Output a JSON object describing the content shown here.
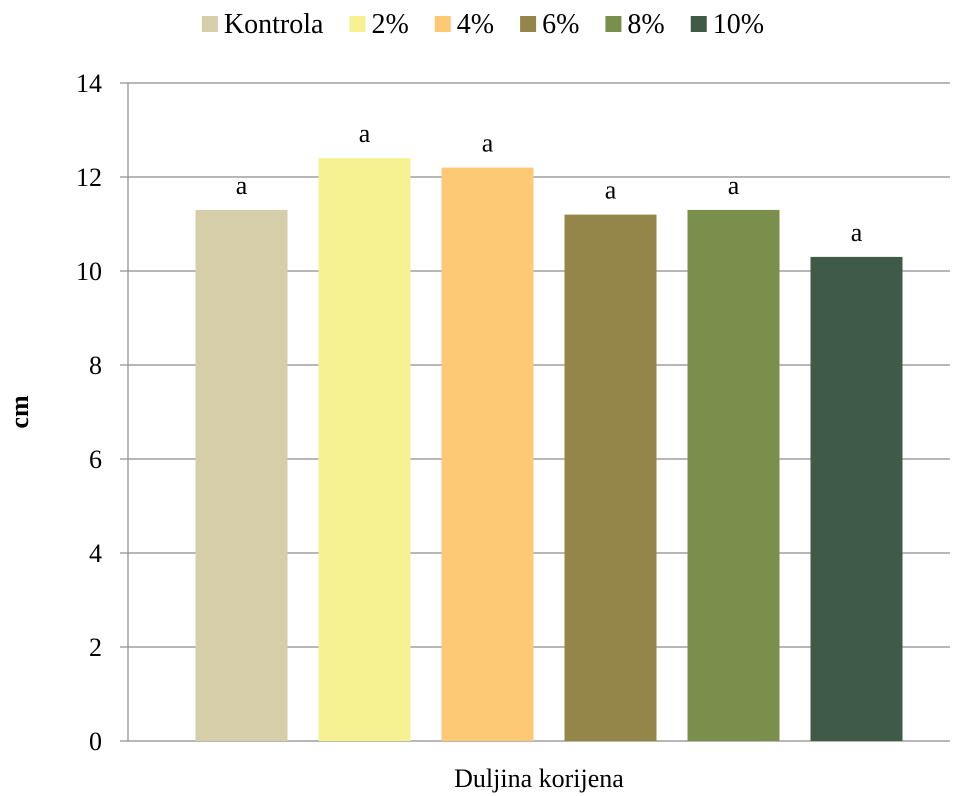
{
  "chart_data": {
    "type": "bar",
    "categories": [
      "Duljina korijena"
    ],
    "series": [
      {
        "name": "Kontrola",
        "values": [
          11.3
        ],
        "color": "#D6CDA9",
        "label": "a"
      },
      {
        "name": "2%",
        "values": [
          12.4
        ],
        "color": "#F5F090",
        "label": "a"
      },
      {
        "name": "4%",
        "values": [
          12.2
        ],
        "color": "#FDC974",
        "label": "a"
      },
      {
        "name": "6%",
        "values": [
          11.2
        ],
        "color": "#948548",
        "label": "a"
      },
      {
        "name": "8%",
        "values": [
          11.3
        ],
        "color": "#7B8F4D",
        "label": "a"
      },
      {
        "name": "10%",
        "values": [
          10.3
        ],
        "color": "#405A48",
        "label": "a"
      }
    ],
    "title": "",
    "xlabel": "",
    "ylabel": "cm",
    "ylim": [
      0,
      14
    ],
    "yticks": [
      0,
      2,
      4,
      6,
      8,
      10,
      12,
      14
    ],
    "grid": true,
    "legend": "top"
  }
}
